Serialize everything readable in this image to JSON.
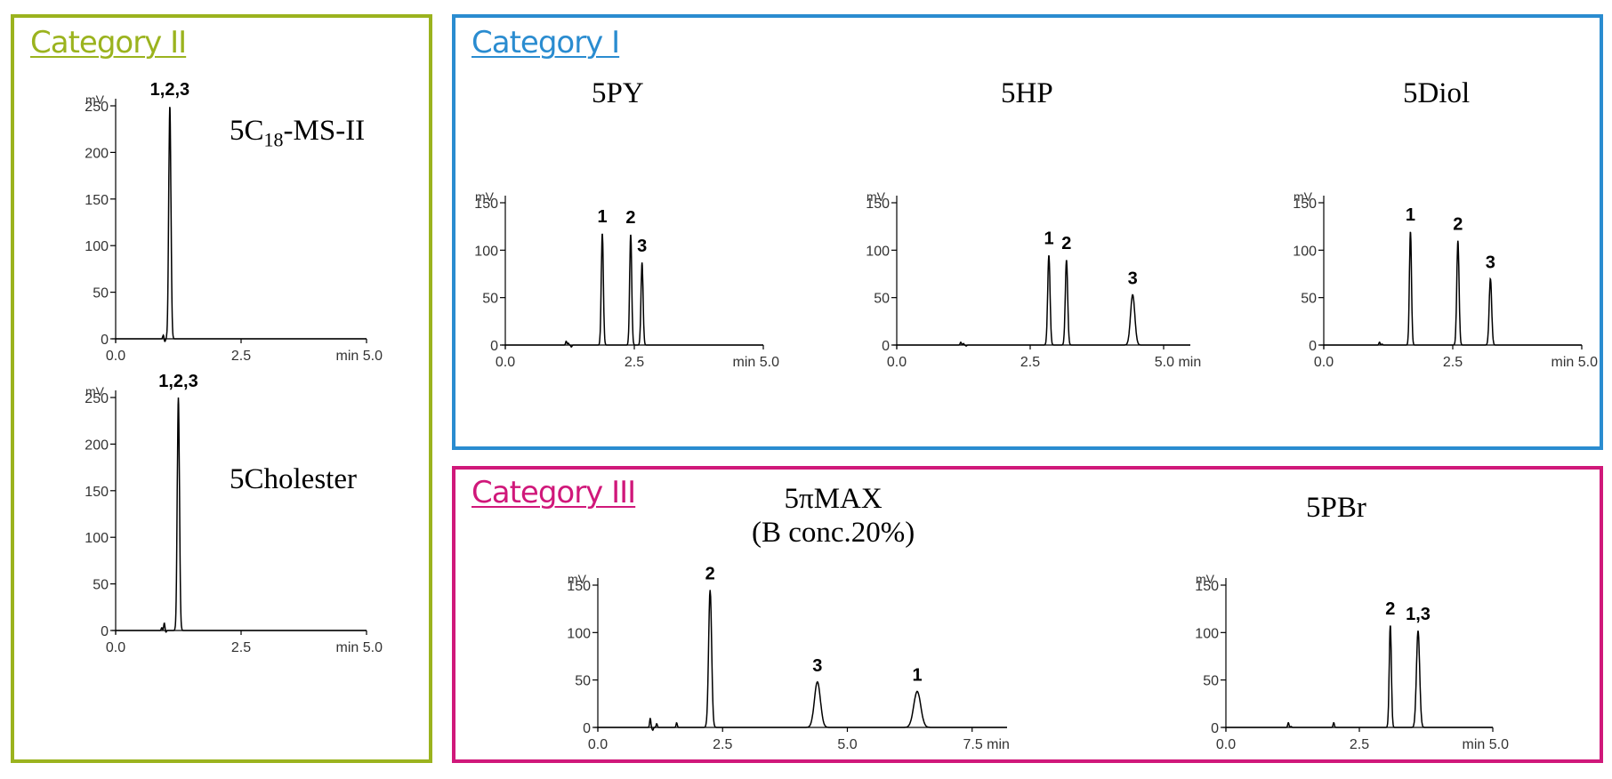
{
  "colors": {
    "category_ii": "#9BB31E",
    "category_i": "#2A8CD0",
    "category_iii": "#D0187A"
  },
  "categories": {
    "category_ii": {
      "title": "Category II"
    },
    "category_i": {
      "title": "Category I"
    },
    "category_iii": {
      "title": "Category III"
    }
  },
  "charts": {
    "c18": {
      "name_prefix": "5C",
      "name_sub": "18",
      "name_suffix": "-MS-II"
    },
    "cholester": {
      "name": "5Cholester"
    },
    "py": {
      "name": "5PY"
    },
    "hp": {
      "name": "5HP"
    },
    "diol": {
      "name": "5Diol"
    },
    "pimax": {
      "name_line1": "5πMAX",
      "name_line2": "(B conc.20%)"
    },
    "pbr": {
      "name": "5PBr"
    }
  },
  "chart_data": [
    {
      "id": "c18",
      "type": "line",
      "category": "category_ii",
      "title": "5C18-MS-II",
      "ylabel": "mV",
      "xlim": [
        0,
        5
      ],
      "ylim": [
        0,
        250
      ],
      "yticks": [
        0,
        50,
        100,
        150,
        200,
        250
      ],
      "xtick_labels": [
        "0.0",
        "2.5",
        "min 5.0"
      ],
      "baseline_noise": [
        {
          "x": 0.95,
          "y": 4
        },
        {
          "x": 0.98,
          "y": -3
        }
      ],
      "peaks": [
        {
          "label": "1,2,3",
          "rt": 1.08,
          "height": 250,
          "width": 0.022
        }
      ]
    },
    {
      "id": "cholester",
      "type": "line",
      "category": "category_ii",
      "title": "5Cholester",
      "ylabel": "mV",
      "xlim": [
        0,
        5
      ],
      "ylim": [
        0,
        250
      ],
      "yticks": [
        0,
        50,
        100,
        150,
        200,
        250
      ],
      "xtick_labels": [
        "0.0",
        "2.5",
        "min 5.0"
      ],
      "baseline_noise": [
        {
          "x": 0.92,
          "y": 3
        },
        {
          "x": 0.97,
          "y": 8
        },
        {
          "x": 1.0,
          "y": -2
        }
      ],
      "peaks": [
        {
          "label": "1,2,3",
          "rt": 1.25,
          "height": 250,
          "width": 0.022
        }
      ]
    },
    {
      "id": "py",
      "type": "line",
      "category": "category_i",
      "title": "5PY",
      "ylabel": "mV",
      "xlim": [
        0,
        5
      ],
      "ylim": [
        0,
        150
      ],
      "yticks": [
        0,
        50,
        100,
        150
      ],
      "xtick_labels": [
        "0.0",
        "2.5",
        "min 5.0"
      ],
      "baseline_noise": [
        {
          "x": 1.18,
          "y": 4
        },
        {
          "x": 1.22,
          "y": 2
        },
        {
          "x": 1.28,
          "y": -2
        }
      ],
      "peaks": [
        {
          "label": "1",
          "rt": 1.88,
          "height": 118,
          "width": 0.02
        },
        {
          "label": "2",
          "rt": 2.43,
          "height": 117,
          "width": 0.02
        },
        {
          "label": "3",
          "rt": 2.65,
          "height": 87,
          "width": 0.02
        }
      ]
    },
    {
      "id": "hp",
      "type": "line",
      "category": "category_i",
      "title": "5HP",
      "ylabel": "mV",
      "xlim": [
        0,
        5.5
      ],
      "ylim": [
        0,
        150
      ],
      "yticks": [
        0,
        50,
        100,
        150
      ],
      "xtick_labels": [
        "0.0",
        "2.5",
        "5.0 min"
      ],
      "baseline_noise": [
        {
          "x": 1.2,
          "y": 3
        },
        {
          "x": 1.25,
          "y": 1.5
        },
        {
          "x": 1.3,
          "y": -1
        }
      ],
      "peaks": [
        {
          "label": "1",
          "rt": 2.85,
          "height": 95,
          "width": 0.022
        },
        {
          "label": "2",
          "rt": 3.18,
          "height": 90,
          "width": 0.022
        },
        {
          "label": "3",
          "rt": 4.42,
          "height": 53,
          "width": 0.04
        }
      ]
    },
    {
      "id": "diol",
      "type": "line",
      "category": "category_i",
      "title": "5Diol",
      "ylabel": "mV",
      "xlim": [
        0,
        5
      ],
      "ylim": [
        0,
        150
      ],
      "yticks": [
        0,
        50,
        100,
        150
      ],
      "xtick_labels": [
        "0.0",
        "2.5",
        "min 5.0"
      ],
      "baseline_noise": [
        {
          "x": 1.08,
          "y": 3
        },
        {
          "x": 1.13,
          "y": 1
        }
      ],
      "peaks": [
        {
          "label": "1",
          "rt": 1.68,
          "height": 120,
          "width": 0.02
        },
        {
          "label": "2",
          "rt": 2.6,
          "height": 110,
          "width": 0.022
        },
        {
          "label": "3",
          "rt": 3.23,
          "height": 70,
          "width": 0.024
        }
      ]
    },
    {
      "id": "pimax",
      "type": "line",
      "category": "category_iii",
      "title": "5πMAX (B conc.20%)",
      "ylabel": "mV",
      "xlim": [
        0,
        8.2
      ],
      "ylim": [
        0,
        150
      ],
      "yticks": [
        0,
        50,
        100,
        150
      ],
      "xtick_labels": [
        "0.0",
        "2.5",
        "5.0",
        "7.5 min"
      ],
      "baseline_noise": [
        {
          "x": 1.05,
          "y": 10
        },
        {
          "x": 1.1,
          "y": -3
        },
        {
          "x": 1.18,
          "y": 4
        },
        {
          "x": 1.58,
          "y": 5
        }
      ],
      "peaks": [
        {
          "label": "2",
          "rt": 2.25,
          "height": 145,
          "width": 0.03
        },
        {
          "label": "3",
          "rt": 4.4,
          "height": 48,
          "width": 0.06
        },
        {
          "label": "1",
          "rt": 6.4,
          "height": 38,
          "width": 0.07
        }
      ]
    },
    {
      "id": "pbr",
      "type": "line",
      "category": "category_iii",
      "title": "5PBr",
      "ylabel": "mV",
      "xlim": [
        0,
        5
      ],
      "ylim": [
        0,
        150
      ],
      "yticks": [
        0,
        50,
        100,
        150
      ],
      "xtick_labels": [
        "0.0",
        "2.5",
        "min 5.0"
      ],
      "baseline_noise": [
        {
          "x": 1.17,
          "y": 5
        },
        {
          "x": 1.22,
          "y": 1
        },
        {
          "x": 2.02,
          "y": 5
        }
      ],
      "peaks": [
        {
          "label": "2",
          "rt": 3.08,
          "height": 108,
          "width": 0.02
        },
        {
          "label": "1,3",
          "rt": 3.6,
          "height": 102,
          "width": 0.03
        }
      ]
    }
  ]
}
